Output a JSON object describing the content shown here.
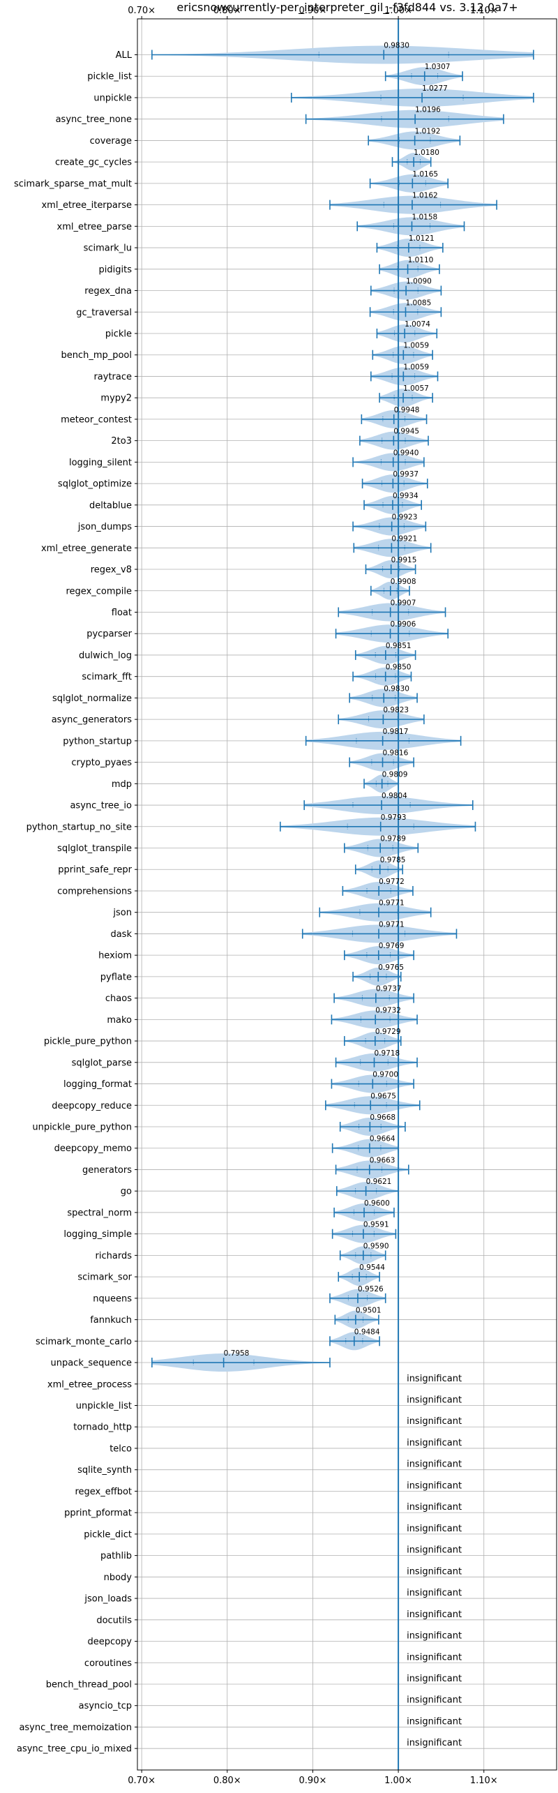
{
  "chart_data": {
    "type": "violin",
    "title": "ericsnowcurrently-per_interpreter_gil_-f3fd844 vs. 3.12.0a7+",
    "xlabel": "",
    "ylabel": "",
    "xlim": [
      0.695,
      1.185
    ],
    "x_ticks": [
      0.7,
      0.8,
      0.9,
      1.0,
      1.1
    ],
    "x_tick_labels": [
      "0.70×",
      "0.80×",
      "0.90×",
      "1.00×",
      "1.10×"
    ],
    "reference_line": 1.0,
    "grid": true,
    "colors": {
      "violin": "#bcd5ec",
      "line": "#1f77b4"
    },
    "insignificant_label": "insignificant",
    "benchmarks": [
      {
        "name": "ALL",
        "value": 0.983,
        "label": "0.9830",
        "min": 0.712,
        "max": 1.158
      },
      {
        "name": "pickle_list",
        "value": 1.0307,
        "label": "1.0307",
        "min": 0.985,
        "max": 1.075
      },
      {
        "name": "unpickle",
        "value": 1.0277,
        "label": "1.0277",
        "min": 0.875,
        "max": 1.158
      },
      {
        "name": "async_tree_none",
        "value": 1.0196,
        "label": "1.0196",
        "min": 0.892,
        "max": 1.123
      },
      {
        "name": "coverage",
        "value": 1.0192,
        "label": "1.0192",
        "min": 0.965,
        "max": 1.072
      },
      {
        "name": "create_gc_cycles",
        "value": 1.018,
        "label": "1.0180",
        "min": 0.993,
        "max": 1.038
      },
      {
        "name": "scimark_sparse_mat_mult",
        "value": 1.0165,
        "label": "1.0165",
        "min": 0.967,
        "max": 1.058
      },
      {
        "name": "xml_etree_iterparse",
        "value": 1.0162,
        "label": "1.0162",
        "min": 0.92,
        "max": 1.115
      },
      {
        "name": "xml_etree_parse",
        "value": 1.0158,
        "label": "1.0158",
        "min": 0.952,
        "max": 1.077
      },
      {
        "name": "scimark_lu",
        "value": 1.0121,
        "label": "1.0121",
        "min": 0.975,
        "max": 1.052
      },
      {
        "name": "pidigits",
        "value": 1.011,
        "label": "1.0110",
        "min": 0.978,
        "max": 1.048
      },
      {
        "name": "regex_dna",
        "value": 1.009,
        "label": "1.0090",
        "min": 0.968,
        "max": 1.05
      },
      {
        "name": "gc_traversal",
        "value": 1.0085,
        "label": "1.0085",
        "min": 0.967,
        "max": 1.05
      },
      {
        "name": "pickle",
        "value": 1.0074,
        "label": "1.0074",
        "min": 0.975,
        "max": 1.045
      },
      {
        "name": "bench_mp_pool",
        "value": 1.0059,
        "label": "1.0059",
        "min": 0.97,
        "max": 1.04
      },
      {
        "name": "raytrace",
        "value": 1.0059,
        "label": "1.0059",
        "min": 0.968,
        "max": 1.046
      },
      {
        "name": "mypy2",
        "value": 1.0057,
        "label": "1.0057",
        "min": 0.978,
        "max": 1.04
      },
      {
        "name": "meteor_contest",
        "value": 0.9948,
        "label": "0.9948",
        "min": 0.957,
        "max": 1.033
      },
      {
        "name": "2to3",
        "value": 0.9945,
        "label": "0.9945",
        "min": 0.955,
        "max": 1.035
      },
      {
        "name": "logging_silent",
        "value": 0.994,
        "label": "0.9940",
        "min": 0.947,
        "max": 1.03
      },
      {
        "name": "sqlglot_optimize",
        "value": 0.9937,
        "label": "0.9937",
        "min": 0.958,
        "max": 1.034
      },
      {
        "name": "deltablue",
        "value": 0.9934,
        "label": "0.9934",
        "min": 0.96,
        "max": 1.027
      },
      {
        "name": "json_dumps",
        "value": 0.9923,
        "label": "0.9923",
        "min": 0.947,
        "max": 1.032
      },
      {
        "name": "xml_etree_generate",
        "value": 0.9921,
        "label": "0.9921",
        "min": 0.948,
        "max": 1.038
      },
      {
        "name": "regex_v8",
        "value": 0.9915,
        "label": "0.9915",
        "min": 0.962,
        "max": 1.02
      },
      {
        "name": "regex_compile",
        "value": 0.9908,
        "label": "0.9908",
        "min": 0.968,
        "max": 1.013
      },
      {
        "name": "float",
        "value": 0.9907,
        "label": "0.9907",
        "min": 0.93,
        "max": 1.055
      },
      {
        "name": "pycparser",
        "value": 0.9906,
        "label": "0.9906",
        "min": 0.927,
        "max": 1.058
      },
      {
        "name": "dulwich_log",
        "value": 0.9851,
        "label": "0.9851",
        "min": 0.95,
        "max": 1.02
      },
      {
        "name": "scimark_fft",
        "value": 0.985,
        "label": "0.9850",
        "min": 0.947,
        "max": 1.015
      },
      {
        "name": "sqlglot_normalize",
        "value": 0.983,
        "label": "0.9830",
        "min": 0.943,
        "max": 1.022
      },
      {
        "name": "async_generators",
        "value": 0.9823,
        "label": "0.9823",
        "min": 0.93,
        "max": 1.03
      },
      {
        "name": "python_startup",
        "value": 0.9817,
        "label": "0.9817",
        "min": 0.892,
        "max": 1.073
      },
      {
        "name": "crypto_pyaes",
        "value": 0.9816,
        "label": "0.9816",
        "min": 0.943,
        "max": 1.018
      },
      {
        "name": "mdp",
        "value": 0.9809,
        "label": "0.9809",
        "min": 0.96,
        "max": 1.0
      },
      {
        "name": "async_tree_io",
        "value": 0.9804,
        "label": "0.9804",
        "min": 0.89,
        "max": 1.087
      },
      {
        "name": "python_startup_no_site",
        "value": 0.9793,
        "label": "0.9793",
        "min": 0.862,
        "max": 1.09
      },
      {
        "name": "sqlglot_transpile",
        "value": 0.9789,
        "label": "0.9789",
        "min": 0.937,
        "max": 1.023
      },
      {
        "name": "pprint_safe_repr",
        "value": 0.9785,
        "label": "0.9785",
        "min": 0.95,
        "max": 1.005
      },
      {
        "name": "comprehensions",
        "value": 0.9772,
        "label": "0.9772",
        "min": 0.935,
        "max": 1.017
      },
      {
        "name": "json",
        "value": 0.9771,
        "label": "0.9771",
        "min": 0.908,
        "max": 1.038
      },
      {
        "name": "dask",
        "value": 0.9771,
        "label": "0.9771",
        "min": 0.888,
        "max": 1.068
      },
      {
        "name": "hexiom",
        "value": 0.9769,
        "label": "0.9769",
        "min": 0.937,
        "max": 1.018
      },
      {
        "name": "pyflate",
        "value": 0.9765,
        "label": "0.9765",
        "min": 0.947,
        "max": 1.003
      },
      {
        "name": "chaos",
        "value": 0.9737,
        "label": "0.9737",
        "min": 0.925,
        "max": 1.018
      },
      {
        "name": "mako",
        "value": 0.9732,
        "label": "0.9732",
        "min": 0.922,
        "max": 1.022
      },
      {
        "name": "pickle_pure_python",
        "value": 0.9729,
        "label": "0.9729",
        "min": 0.937,
        "max": 1.003
      },
      {
        "name": "sqlglot_parse",
        "value": 0.9718,
        "label": "0.9718",
        "min": 0.927,
        "max": 1.022
      },
      {
        "name": "logging_format",
        "value": 0.97,
        "label": "0.9700",
        "min": 0.922,
        "max": 1.018
      },
      {
        "name": "deepcopy_reduce",
        "value": 0.9675,
        "label": "0.9675",
        "min": 0.915,
        "max": 1.025
      },
      {
        "name": "unpickle_pure_python",
        "value": 0.9668,
        "label": "0.9668",
        "min": 0.932,
        "max": 1.008
      },
      {
        "name": "deepcopy_memo",
        "value": 0.9664,
        "label": "0.9664",
        "min": 0.923,
        "max": 1.0
      },
      {
        "name": "generators",
        "value": 0.9663,
        "label": "0.9663",
        "min": 0.927,
        "max": 1.012
      },
      {
        "name": "go",
        "value": 0.9621,
        "label": "0.9621",
        "min": 0.928,
        "max": 1.0
      },
      {
        "name": "spectral_norm",
        "value": 0.96,
        "label": "0.9600",
        "min": 0.925,
        "max": 0.995
      },
      {
        "name": "logging_simple",
        "value": 0.9591,
        "label": "0.9591",
        "min": 0.923,
        "max": 0.997
      },
      {
        "name": "richards",
        "value": 0.959,
        "label": "0.9590",
        "min": 0.932,
        "max": 0.985
      },
      {
        "name": "scimark_sor",
        "value": 0.9544,
        "label": "0.9544",
        "min": 0.93,
        "max": 0.978
      },
      {
        "name": "nqueens",
        "value": 0.9526,
        "label": "0.9526",
        "min": 0.92,
        "max": 0.985
      },
      {
        "name": "fannkuch",
        "value": 0.9501,
        "label": "0.9501",
        "min": 0.926,
        "max": 0.977
      },
      {
        "name": "scimark_monte_carlo",
        "value": 0.9484,
        "label": "0.9484",
        "min": 0.92,
        "max": 0.978
      },
      {
        "name": "unpack_sequence",
        "value": 0.7958,
        "label": "0.7958",
        "min": 0.712,
        "max": 0.92
      },
      {
        "name": "xml_etree_process",
        "insignificant": true
      },
      {
        "name": "unpickle_list",
        "insignificant": true
      },
      {
        "name": "tornado_http",
        "insignificant": true
      },
      {
        "name": "telco",
        "insignificant": true
      },
      {
        "name": "sqlite_synth",
        "insignificant": true
      },
      {
        "name": "regex_effbot",
        "insignificant": true
      },
      {
        "name": "pprint_pformat",
        "insignificant": true
      },
      {
        "name": "pickle_dict",
        "insignificant": true
      },
      {
        "name": "pathlib",
        "insignificant": true
      },
      {
        "name": "nbody",
        "insignificant": true
      },
      {
        "name": "json_loads",
        "insignificant": true
      },
      {
        "name": "docutils",
        "insignificant": true
      },
      {
        "name": "deepcopy",
        "insignificant": true
      },
      {
        "name": "coroutines",
        "insignificant": true
      },
      {
        "name": "bench_thread_pool",
        "insignificant": true
      },
      {
        "name": "asyncio_tcp",
        "insignificant": true
      },
      {
        "name": "async_tree_memoization",
        "insignificant": true
      },
      {
        "name": "async_tree_cpu_io_mixed",
        "insignificant": true
      }
    ]
  }
}
